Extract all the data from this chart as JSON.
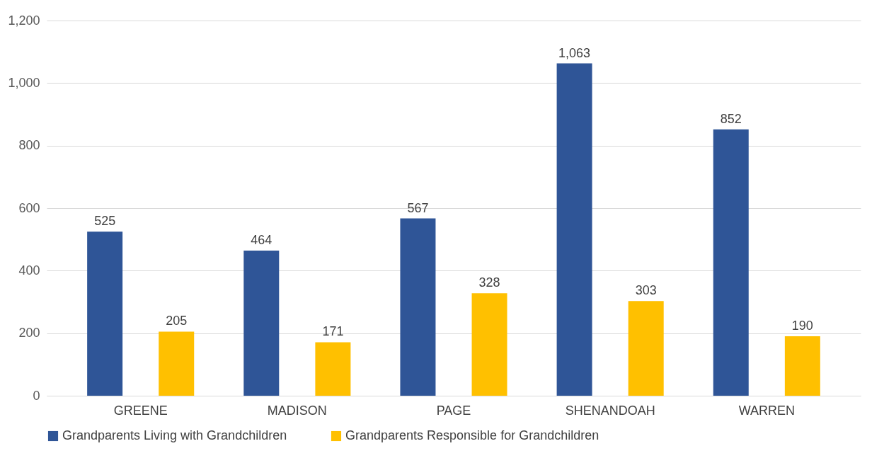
{
  "chart_data": {
    "type": "bar",
    "categories": [
      "GREENE",
      "MADISON",
      "PAGE",
      "SHENANDOAH",
      "WARREN"
    ],
    "series": [
      {
        "name": "Grandparents Living with Grandchildren",
        "color": "#2f5597",
        "values": [
          525,
          464,
          567,
          1063,
          852
        ],
        "value_labels": [
          "525",
          "464",
          "567",
          "1,063",
          "852"
        ]
      },
      {
        "name": "Grandparents Responsible for Grandchildren",
        "color": "#ffc000",
        "values": [
          205,
          171,
          328,
          303,
          190
        ],
        "value_labels": [
          "205",
          "171",
          "328",
          "303",
          "190"
        ]
      }
    ],
    "ylim": [
      0,
      1200
    ],
    "yticks": [
      0,
      200,
      400,
      600,
      800,
      {
        "value": 1000,
        "label": "1,000"
      },
      {
        "value": 1200,
        "label": "1,200"
      }
    ],
    "grid": "y",
    "legend": "bottom"
  }
}
